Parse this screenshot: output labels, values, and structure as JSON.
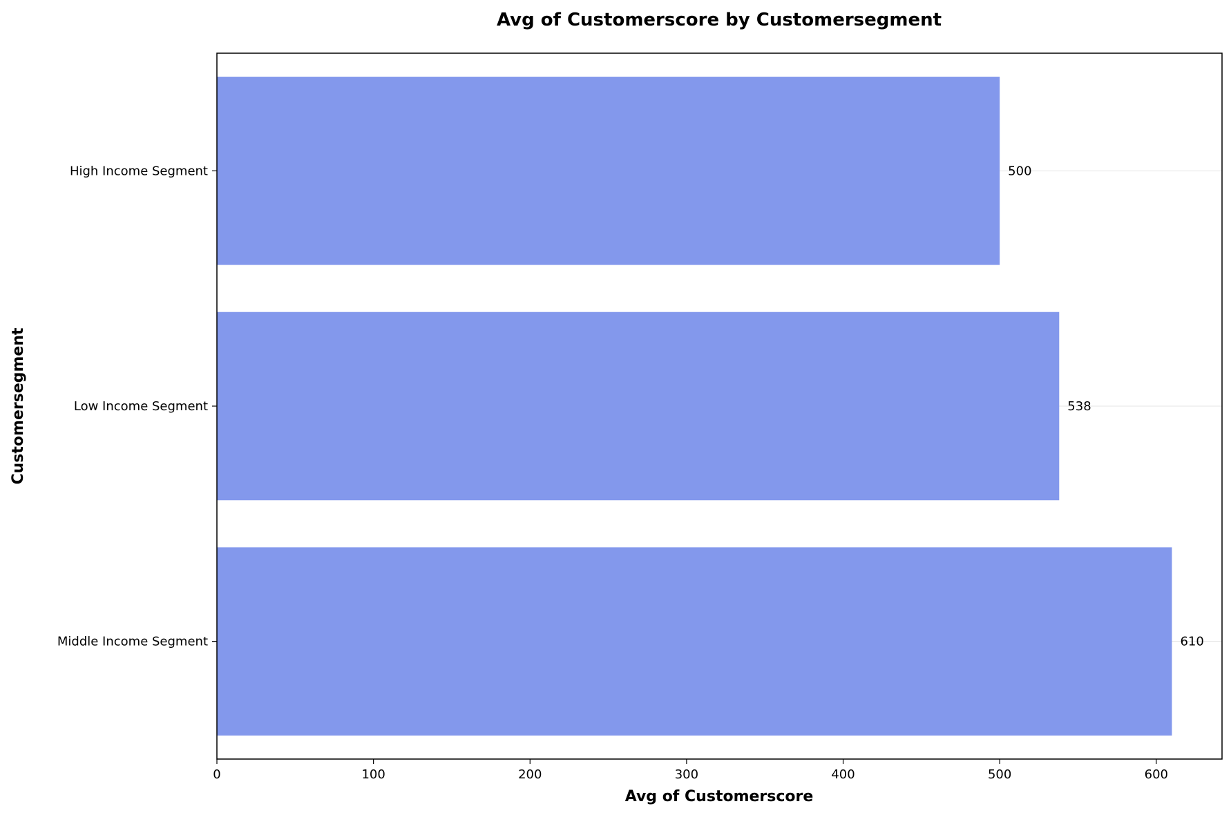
{
  "chart_data": {
    "type": "bar",
    "orientation": "horizontal",
    "title": "Avg of Customerscore by Customersegment",
    "xlabel": "Avg of Customerscore",
    "ylabel": "Customersegment",
    "categories": [
      "High Income Segment",
      "Low Income Segment",
      "Middle Income Segment"
    ],
    "values": [
      500,
      538,
      610
    ],
    "data_labels": [
      "500",
      "538",
      "610"
    ],
    "xlim": [
      0,
      642
    ],
    "xticks": [
      0,
      100,
      200,
      300,
      400,
      500,
      600
    ],
    "bar_color": "#8398ec",
    "grid": "y-only-light",
    "legend": "none"
  }
}
